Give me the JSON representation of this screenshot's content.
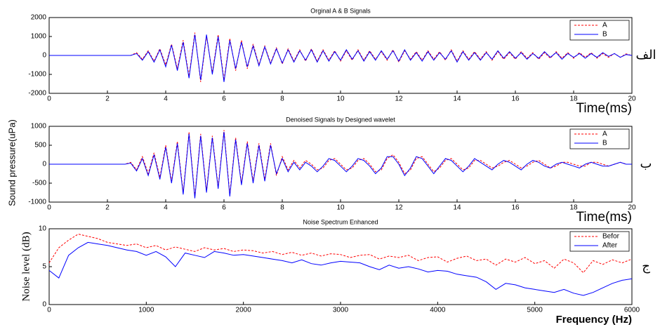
{
  "chart_data": [
    {
      "type": "line",
      "title": "Orginal A & B Signals",
      "xlabel": "Time(ms)",
      "panel_label": "الف",
      "x": [
        0,
        0.2,
        0.4,
        0.6,
        0.8,
        1,
        1.2,
        1.4,
        1.6,
        1.8,
        2,
        2.2,
        2.4,
        2.6,
        2.8,
        3,
        3.2,
        3.4,
        3.6,
        3.8,
        4,
        4.2,
        4.4,
        4.6,
        4.8,
        5,
        5.2,
        5.4,
        5.6,
        5.8,
        6,
        6.2,
        6.4,
        6.6,
        6.8,
        7,
        7.2,
        7.4,
        7.6,
        7.8,
        8,
        8.2,
        8.4,
        8.6,
        8.8,
        9,
        9.2,
        9.4,
        9.6,
        9.8,
        10,
        10.2,
        10.4,
        10.6,
        10.8,
        11,
        11.2,
        11.4,
        11.6,
        11.8,
        12,
        12.2,
        12.4,
        12.6,
        12.8,
        13,
        13.2,
        13.4,
        13.6,
        13.8,
        14,
        14.2,
        14.4,
        14.6,
        14.8,
        15,
        15.2,
        15.4,
        15.6,
        15.8,
        16,
        16.2,
        16.4,
        16.6,
        16.8,
        17,
        17.2,
        17.4,
        17.6,
        17.8,
        18,
        18.2,
        18.4,
        18.6,
        18.8,
        19,
        19.2,
        19.4,
        19.6,
        19.8,
        20
      ],
      "series": [
        {
          "name": "A",
          "color": "#ff0000",
          "linestyle": "dashed",
          "values": [
            0,
            0,
            0,
            0,
            0,
            0,
            0,
            0,
            0,
            0,
            0,
            0,
            0,
            0,
            0,
            150,
            -200,
            250,
            -300,
            350,
            -500,
            600,
            -700,
            800,
            -1100,
            1200,
            -1400,
            1000,
            -900,
            1100,
            -1300,
            900,
            -800,
            800,
            -700,
            600,
            -500,
            500,
            -400,
            400,
            -450,
            350,
            -300,
            300,
            -300,
            350,
            -300,
            300,
            -250,
            250,
            -300,
            250,
            -250,
            300,
            -250,
            250,
            -200,
            200,
            -250,
            300,
            -350,
            250,
            -200,
            200,
            -250,
            250,
            -200,
            200,
            -250,
            300,
            -300,
            250,
            -200,
            200,
            -200,
            200,
            -250,
            200,
            -200,
            150,
            -200,
            200,
            -150,
            150,
            -200,
            150,
            -150,
            200,
            -150,
            150,
            -150,
            150,
            -100,
            150,
            -150,
            100,
            -100,
            100,
            -100,
            80,
            0
          ]
        },
        {
          "name": "B",
          "color": "#0000ff",
          "linestyle": "solid",
          "values": [
            0,
            0,
            0,
            0,
            0,
            0,
            0,
            0,
            0,
            0,
            0,
            0,
            0,
            0,
            0,
            100,
            -250,
            200,
            -350,
            300,
            -600,
            550,
            -800,
            700,
            -1200,
            1100,
            -1300,
            1100,
            -1000,
            1000,
            -1400,
            800,
            -700,
            700,
            -600,
            500,
            -550,
            450,
            -450,
            350,
            -400,
            300,
            -350,
            250,
            -250,
            300,
            -350,
            250,
            -300,
            200,
            -250,
            300,
            -200,
            250,
            -300,
            200,
            -250,
            250,
            -200,
            250,
            -300,
            300,
            -250,
            150,
            -300,
            200,
            -250,
            150,
            -200,
            250,
            -350,
            200,
            -250,
            150,
            -250,
            150,
            -200,
            250,
            -150,
            200,
            -150,
            150,
            -200,
            100,
            -150,
            200,
            -100,
            150,
            -200,
            100,
            -100,
            100,
            -150,
            100,
            -100,
            150,
            -50,
            100,
            -100,
            50,
            0
          ]
        }
      ],
      "xlim": [
        0,
        20
      ],
      "ylim": [
        -2000,
        2000
      ],
      "xticks": [
        0,
        2,
        4,
        6,
        8,
        10,
        12,
        14,
        16,
        18,
        20
      ],
      "yticks": [
        -2000,
        -1000,
        0,
        1000,
        2000
      ],
      "legend": "upper right"
    },
    {
      "type": "line",
      "title": "Denoised Signals by Designed wavelet",
      "xlabel": "Time(ms)",
      "ylabel": "Sound pressure(uPa)",
      "panel_label": "ب",
      "x": [
        0,
        0.2,
        0.4,
        0.6,
        0.8,
        1,
        1.2,
        1.4,
        1.6,
        1.8,
        2,
        2.2,
        2.4,
        2.6,
        2.8,
        3,
        3.2,
        3.4,
        3.6,
        3.8,
        4,
        4.2,
        4.4,
        4.6,
        4.8,
        5,
        5.2,
        5.4,
        5.6,
        5.8,
        6,
        6.2,
        6.4,
        6.6,
        6.8,
        7,
        7.2,
        7.4,
        7.6,
        7.8,
        8,
        8.2,
        8.4,
        8.6,
        8.8,
        9,
        9.2,
        9.4,
        9.6,
        9.8,
        10,
        10.2,
        10.4,
        10.6,
        10.8,
        11,
        11.2,
        11.4,
        11.6,
        11.8,
        12,
        12.2,
        12.4,
        12.6,
        12.8,
        13,
        13.2,
        13.4,
        13.6,
        13.8,
        14,
        14.2,
        14.4,
        14.6,
        14.8,
        15,
        15.2,
        15.4,
        15.6,
        15.8,
        16,
        16.2,
        16.4,
        16.6,
        16.8,
        17,
        17.2,
        17.4,
        17.6,
        17.8,
        18,
        18.2,
        18.4,
        18.6,
        18.8,
        19,
        19.2,
        19.4,
        19.6,
        19.8,
        20
      ],
      "series": [
        {
          "name": "A",
          "color": "#ff0000",
          "linestyle": "dashed",
          "values": [
            0,
            0,
            0,
            0,
            0,
            0,
            0,
            0,
            0,
            0,
            0,
            0,
            0,
            0,
            50,
            -150,
            200,
            -250,
            300,
            -350,
            500,
            -450,
            600,
            -750,
            850,
            -850,
            800,
            -700,
            750,
            -600,
            900,
            -800,
            700,
            -500,
            600,
            -450,
            550,
            -400,
            550,
            -300,
            200,
            -150,
            100,
            -100,
            100,
            0,
            -150,
            -100,
            100,
            150,
            0,
            -150,
            -100,
            100,
            150,
            0,
            -200,
            -150,
            150,
            250,
            50,
            -250,
            -150,
            150,
            200,
            0,
            -200,
            -100,
            100,
            150,
            0,
            -150,
            -100,
            100,
            100,
            0,
            -100,
            -50,
            50,
            100,
            0,
            -100,
            -50,
            50,
            100,
            0,
            -100,
            -50,
            50,
            50,
            0,
            -50,
            -50,
            50,
            50,
            0,
            -50,
            0,
            50,
            0,
            0
          ]
        },
        {
          "name": "B",
          "color": "#0000ff",
          "linestyle": "solid",
          "values": [
            0,
            0,
            0,
            0,
            0,
            0,
            0,
            0,
            0,
            0,
            0,
            0,
            0,
            0,
            30,
            -180,
            150,
            -300,
            250,
            -400,
            450,
            -500,
            550,
            -800,
            800,
            -900,
            750,
            -750,
            700,
            -650,
            850,
            -850,
            650,
            -550,
            550,
            -500,
            500,
            -450,
            500,
            -250,
            150,
            -200,
            50,
            -150,
            50,
            -50,
            -200,
            -50,
            150,
            100,
            -50,
            -200,
            -50,
            150,
            100,
            -50,
            -250,
            -100,
            200,
            200,
            0,
            -300,
            -100,
            200,
            150,
            -50,
            -250,
            -50,
            150,
            100,
            -50,
            -200,
            -50,
            150,
            50,
            -50,
            -150,
            0,
            100,
            50,
            -50,
            -150,
            0,
            100,
            50,
            -50,
            -100,
            0,
            50,
            0,
            -50,
            -100,
            0,
            50,
            0,
            -50,
            -50,
            0,
            50,
            0,
            0
          ]
        }
      ],
      "xlim": [
        0,
        20
      ],
      "ylim": [
        -1000,
        1000
      ],
      "xticks": [
        0,
        2,
        4,
        6,
        8,
        10,
        12,
        14,
        16,
        18,
        20
      ],
      "yticks": [
        -1000,
        -500,
        0,
        500,
        1000
      ],
      "legend": "upper right"
    },
    {
      "type": "line",
      "title": "Noise Spectrum   Enhanced",
      "xlabel": "Frequency (Hz)",
      "ylabel": "Noise level (dB)",
      "panel_label": "ج",
      "x": [
        0,
        100,
        200,
        300,
        400,
        500,
        600,
        700,
        800,
        900,
        1000,
        1100,
        1200,
        1300,
        1400,
        1500,
        1600,
        1700,
        1800,
        1900,
        2000,
        2100,
        2200,
        2300,
        2400,
        2500,
        2600,
        2700,
        2800,
        2900,
        3000,
        3100,
        3200,
        3300,
        3400,
        3500,
        3600,
        3700,
        3800,
        3900,
        4000,
        4100,
        4200,
        4300,
        4400,
        4500,
        4600,
        4700,
        4800,
        4900,
        5000,
        5100,
        5200,
        5300,
        5400,
        5500,
        5600,
        5700,
        5800,
        5900,
        6000
      ],
      "series": [
        {
          "name": "Befor",
          "color": "#ff0000",
          "linestyle": "dashed",
          "values": [
            5.5,
            7.5,
            8.5,
            9.3,
            9.0,
            8.7,
            8.2,
            8.0,
            7.8,
            8.0,
            7.5,
            7.8,
            7.2,
            7.6,
            7.3,
            7.0,
            7.5,
            7.2,
            7.4,
            7.0,
            7.2,
            7.1,
            6.8,
            7.0,
            6.6,
            6.9,
            6.5,
            6.8,
            6.4,
            6.7,
            6.6,
            6.2,
            6.5,
            6.6,
            6.0,
            6.4,
            6.2,
            6.5,
            5.8,
            6.2,
            6.3,
            5.6,
            6.1,
            6.4,
            5.8,
            6.0,
            5.2,
            6.0,
            5.6,
            6.2,
            5.4,
            5.8,
            4.8,
            6.0,
            5.5,
            4.2,
            5.8,
            5.3,
            5.9,
            5.5,
            6.0
          ]
        },
        {
          "name": "After",
          "color": "#0000ff",
          "linestyle": "solid",
          "values": [
            4.5,
            3.5,
            6.5,
            7.5,
            8.2,
            8.0,
            7.8,
            7.5,
            7.2,
            7.0,
            6.5,
            7.0,
            6.3,
            5.0,
            6.8,
            6.5,
            6.2,
            7.0,
            6.8,
            6.5,
            6.6,
            6.4,
            6.2,
            6.0,
            5.8,
            5.5,
            5.9,
            5.4,
            5.2,
            5.5,
            5.7,
            5.6,
            5.5,
            5.0,
            4.6,
            5.2,
            4.8,
            5.0,
            4.7,
            4.3,
            4.5,
            4.4,
            4.0,
            3.8,
            3.6,
            3.0,
            2.0,
            2.8,
            2.6,
            2.2,
            2.0,
            1.8,
            1.6,
            2.0,
            1.5,
            1.2,
            1.6,
            2.2,
            2.8,
            3.2,
            3.4
          ]
        }
      ],
      "xlim": [
        0,
        6000
      ],
      "ylim": [
        0,
        10
      ],
      "xticks": [
        0,
        1000,
        2000,
        3000,
        4000,
        5000,
        6000
      ],
      "yticks": [
        0,
        5,
        10
      ],
      "legend": "upper right"
    }
  ]
}
